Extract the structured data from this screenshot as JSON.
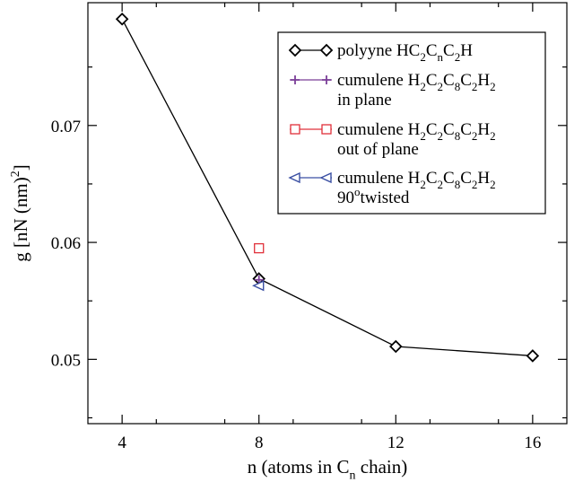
{
  "chart_data": {
    "type": "line",
    "title": "",
    "xlabel": {
      "pre": "n (atoms in C",
      "sub": "n",
      "post": " chain)"
    },
    "ylabel": {
      "pre": "g  [nN (nm)",
      "sup": "2",
      "post": "]"
    },
    "xlim": [
      3,
      17
    ],
    "ylim": [
      0.0445,
      0.0805
    ],
    "xticks": [
      4,
      8,
      12,
      16
    ],
    "xtick_labels": [
      "4",
      "8",
      "12",
      "16"
    ],
    "yticks": [
      0.05,
      0.06,
      0.07
    ],
    "ytick_labels": [
      "0.05",
      "0.06",
      "0.07"
    ],
    "grid": false,
    "legend_position": "top-right",
    "series": [
      {
        "name": [
          {
            "t": "polyyne HC",
            "s": 0
          },
          {
            "t": "2",
            "s": -1
          },
          {
            "t": "C",
            "s": 0
          },
          {
            "t": "n",
            "s": -1
          },
          {
            "t": "C",
            "s": 0
          },
          {
            "t": "2",
            "s": -1
          },
          {
            "t": "H",
            "s": 0
          }
        ],
        "marker": "diamond",
        "color": "#000000",
        "x": [
          4,
          8,
          12,
          16
        ],
        "y": [
          0.0791,
          0.0569,
          0.0511,
          0.0503
        ]
      },
      {
        "name": [
          {
            "t": "cumulene H",
            "s": 0
          },
          {
            "t": "2",
            "s": -1
          },
          {
            "t": "C",
            "s": 0
          },
          {
            "t": "2",
            "s": -1
          },
          {
            "t": "C",
            "s": 0
          },
          {
            "t": "8",
            "s": -1
          },
          {
            "t": "C",
            "s": 0
          },
          {
            "t": "2",
            "s": -1
          },
          {
            "t": "H",
            "s": 0
          },
          {
            "t": "2",
            "s": -1
          }
        ],
        "name2": [
          {
            "t": "in plane",
            "s": 0
          }
        ],
        "marker": "plus",
        "color": "#7b3f98",
        "x": [
          8
        ],
        "y": [
          0.0568
        ]
      },
      {
        "name": [
          {
            "t": "cumulene H",
            "s": 0
          },
          {
            "t": "2",
            "s": -1
          },
          {
            "t": "C",
            "s": 0
          },
          {
            "t": "2",
            "s": -1
          },
          {
            "t": "C",
            "s": 0
          },
          {
            "t": "8",
            "s": -1
          },
          {
            "t": "C",
            "s": 0
          },
          {
            "t": "2",
            "s": -1
          },
          {
            "t": "H",
            "s": 0
          },
          {
            "t": "2",
            "s": -1
          }
        ],
        "name2": [
          {
            "t": "out of plane",
            "s": 0
          }
        ],
        "marker": "square",
        "color": "#e0303a",
        "x": [
          8
        ],
        "y": [
          0.0595
        ]
      },
      {
        "name": [
          {
            "t": "cumulene H",
            "s": 0
          },
          {
            "t": "2",
            "s": -1
          },
          {
            "t": "C",
            "s": 0
          },
          {
            "t": "2",
            "s": -1
          },
          {
            "t": "C",
            "s": 0
          },
          {
            "t": "8",
            "s": -1
          },
          {
            "t": "C",
            "s": 0
          },
          {
            "t": "2",
            "s": -1
          },
          {
            "t": "H",
            "s": 0
          },
          {
            "t": "2",
            "s": -1
          }
        ],
        "name2": [
          {
            "t": "90",
            "s": 0
          },
          {
            "t": "o",
            "s": 1
          },
          {
            "t": "twisted",
            "s": 0
          }
        ],
        "marker": "triangle-left",
        "color": "#3a4fa3",
        "x": [
          8
        ],
        "y": [
          0.0563
        ]
      }
    ]
  }
}
